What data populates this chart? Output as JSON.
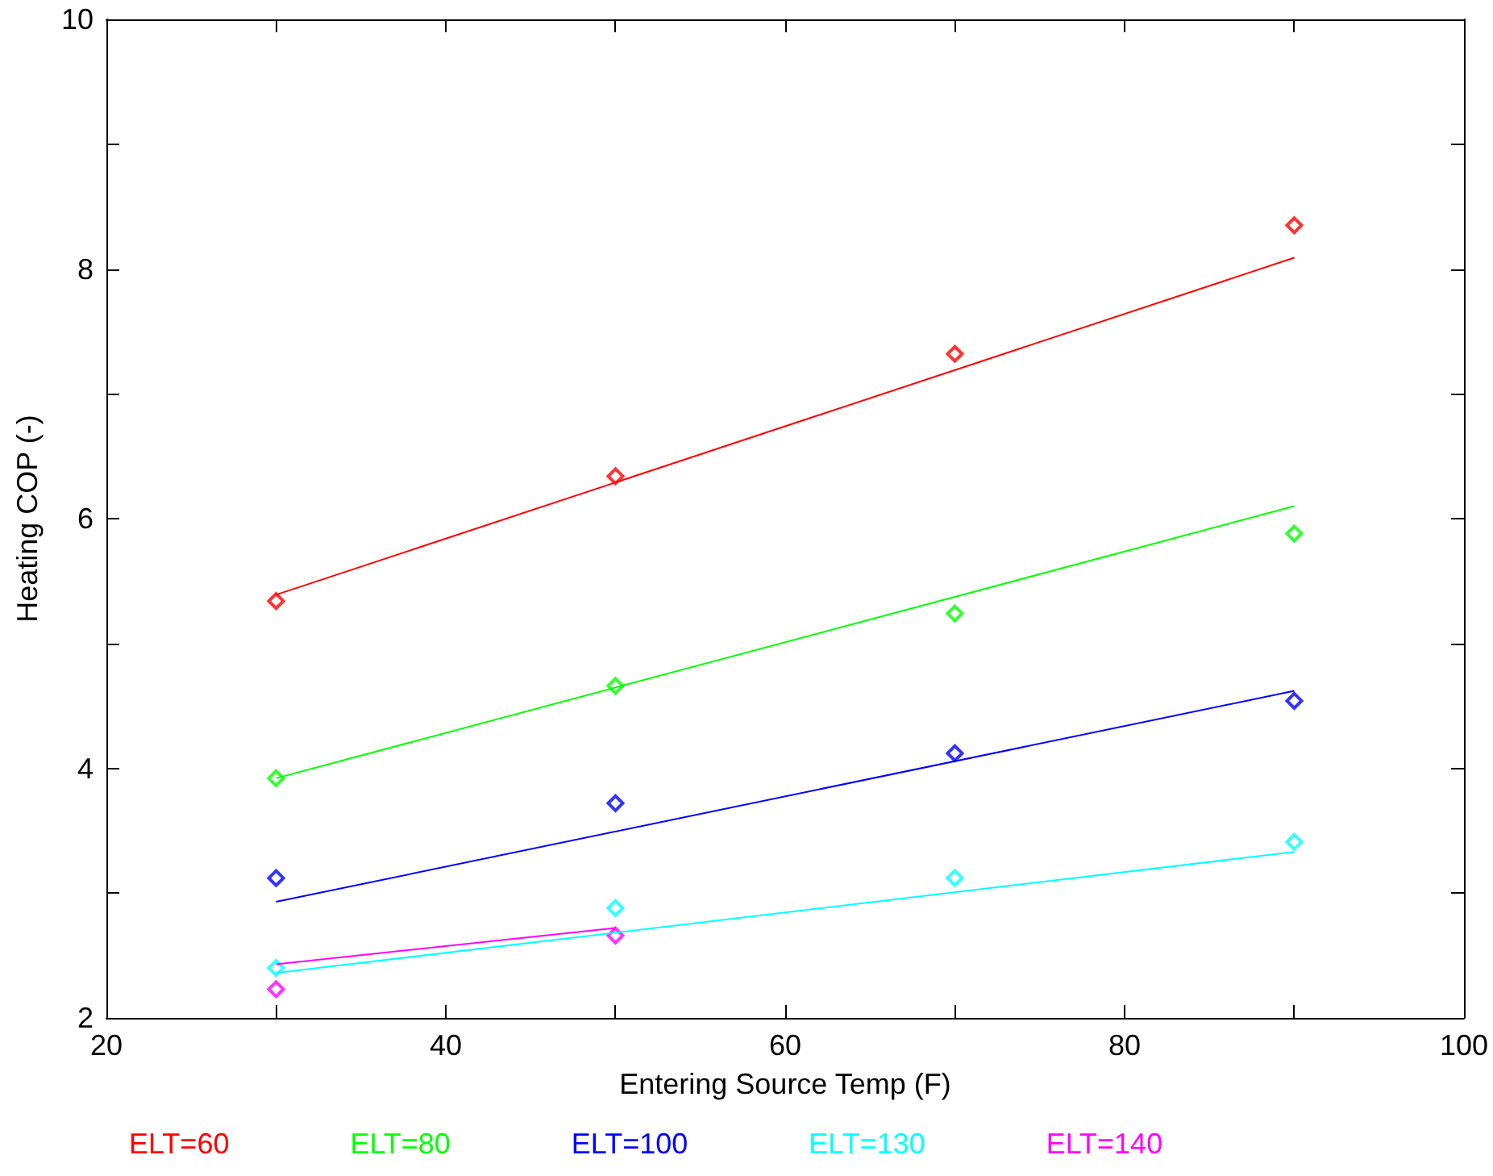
{
  "chart_data": {
    "type": "scatter",
    "xlabel": "Entering Source Temp (F)",
    "ylabel": "Heating COP (-)",
    "xlim": [
      20,
      100
    ],
    "xticks": [
      20,
      {
        "value": 30,
        "label": null
      },
      40,
      {
        "value": 50,
        "label": null
      },
      60,
      {
        "value": 70,
        "label": null
      },
      80,
      {
        "value": 90,
        "label": null
      },
      100
    ],
    "ylim": [
      2,
      10
    ],
    "yticks": [
      2,
      {
        "value": 3,
        "label": null
      },
      4,
      {
        "value": 5,
        "label": null
      },
      6,
      {
        "value": 7,
        "label": null
      },
      8,
      {
        "value": 9,
        "label": null
      },
      10
    ],
    "grid": false,
    "legend": "bottom left",
    "marker": "diamond",
    "series": [
      {
        "name": "ELT=60",
        "color": "#ff0000",
        "x": [
          30,
          50,
          70,
          90
        ],
        "values": [
          5.34,
          6.34,
          7.32,
          8.35
        ]
      },
      {
        "name": "ELT=80",
        "color": "#00ff00",
        "x": [
          30,
          50,
          70,
          90
        ],
        "values": [
          3.92,
          4.66,
          5.24,
          5.88
        ]
      },
      {
        "name": "ELT=100",
        "color": "#0000ff",
        "x": [
          30,
          50,
          70,
          90
        ],
        "values": [
          3.12,
          3.72,
          4.12,
          4.54
        ]
      },
      {
        "name": "ELT=130",
        "color": "#00ffff",
        "x": [
          30,
          50,
          70,
          90
        ],
        "values": [
          2.4,
          2.88,
          3.12,
          3.41
        ]
      },
      {
        "name": "ELT=140",
        "color": "#ff00ff",
        "x": [
          30,
          50
        ],
        "values": [
          2.23,
          2.66
        ]
      },
      {
        "type": "line",
        "color": "#ff0000",
        "marker": "none",
        "x": [
          30,
          90
        ],
        "values": [
          5.39,
          8.09
        ]
      },
      {
        "type": "line",
        "color": "#00ff00",
        "marker": "none",
        "x": [
          30,
          90
        ],
        "values": [
          3.92,
          6.1
        ]
      },
      {
        "type": "line",
        "color": "#0000ff",
        "marker": "none",
        "x": [
          30,
          90
        ],
        "values": [
          2.93,
          4.62
        ]
      },
      {
        "type": "line",
        "color": "#00ffff",
        "marker": "none",
        "x": [
          30,
          90
        ],
        "values": [
          2.36,
          3.33
        ]
      },
      {
        "type": "line",
        "color": "#ff00ff",
        "marker": "none",
        "x": [
          30,
          50
        ],
        "values": [
          2.43,
          2.72
        ]
      }
    ]
  }
}
